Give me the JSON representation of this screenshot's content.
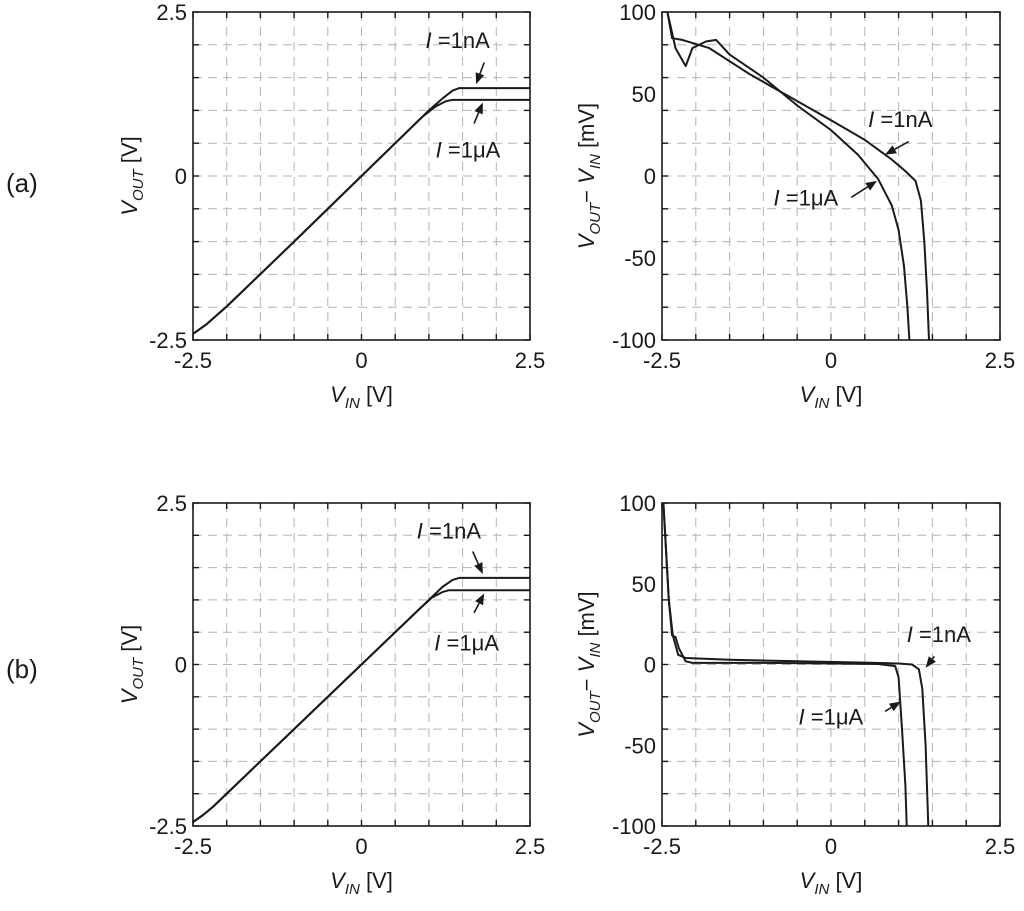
{
  "panel_labels": [
    "(a)",
    "(b)"
  ],
  "chart_data": [
    {
      "id": "a-left",
      "type": "line",
      "row_label": "(a)",
      "xlabel": {
        "main": "V",
        "sub": "IN",
        "unit": " [V]"
      },
      "ylabel": {
        "main": "V",
        "sub": "OUT",
        "unit": " [V]"
      },
      "xlim": [
        -2.5,
        2.5
      ],
      "ylim": [
        -2.5,
        2.5
      ],
      "xticks": [
        -2.5,
        0,
        2.5
      ],
      "xtick_labels": [
        "-2.5",
        "0",
        "2.5"
      ],
      "yticks": [
        -2.5,
        0,
        2.5
      ],
      "ytick_labels": [
        "-2.5",
        "0",
        "2.5"
      ],
      "grid": true,
      "series": [
        {
          "name": "I =1nA",
          "points": [
            [
              -2.62,
              -2.45
            ],
            [
              -2.55,
              -2.44
            ],
            [
              -2.45,
              -2.37
            ],
            [
              -2.3,
              -2.26
            ],
            [
              -2.0,
              -1.99
            ],
            [
              -1.0,
              -1.0
            ],
            [
              0,
              0
            ],
            [
              1.0,
              1.0
            ],
            [
              1.2,
              1.18
            ],
            [
              1.35,
              1.3
            ],
            [
              1.45,
              1.34
            ],
            [
              2.5,
              1.34
            ]
          ]
        },
        {
          "name": "I =1μA",
          "points": [
            [
              -2.62,
              -2.45
            ],
            [
              -2.55,
              -2.44
            ],
            [
              -2.45,
              -2.37
            ],
            [
              -2.3,
              -2.26
            ],
            [
              -2.0,
              -1.99
            ],
            [
              -1.0,
              -1.0
            ],
            [
              0,
              0
            ],
            [
              0.9,
              0.9
            ],
            [
              1.1,
              1.06
            ],
            [
              1.25,
              1.14
            ],
            [
              1.35,
              1.16
            ],
            [
              2.5,
              1.16
            ]
          ]
        }
      ],
      "annotations": [
        {
          "text_main": "I",
          "text_rest": " =1nA",
          "text_pos": [
            0.95,
            1.95
          ],
          "arrow_from": [
            1.82,
            1.73
          ],
          "arrow_to": [
            1.7,
            1.4
          ]
        },
        {
          "text_main": "I",
          "text_rest": " =1μA",
          "text_pos": [
            1.1,
            0.28
          ],
          "arrow_from": [
            1.67,
            0.8
          ],
          "arrow_to": [
            1.8,
            1.12
          ]
        }
      ]
    },
    {
      "id": "a-right",
      "type": "line",
      "row_label": "(a)",
      "xlabel": {
        "main": "V",
        "sub": "IN",
        "unit": " [V]"
      },
      "ylabel": {
        "main": "V",
        "sub": "OUT",
        "mid": "− V",
        "sub2": "IN",
        "unit": " [mV]"
      },
      "xlim": [
        -2.5,
        2.5
      ],
      "ylim": [
        -100,
        100
      ],
      "xticks": [
        -2.5,
        0,
        2.5
      ],
      "xtick_labels": [
        "-2.5",
        "0",
        "2.5"
      ],
      "yticks": [
        -100,
        -50,
        0,
        50,
        100
      ],
      "ytick_labels": [
        "-100",
        "-50",
        "0",
        "50",
        "100"
      ],
      "grid": true,
      "series": [
        {
          "name": "I =1nA",
          "points": [
            [
              -2.42,
              100
            ],
            [
              -2.35,
              84
            ],
            [
              -2.2,
              83
            ],
            [
              -1.8,
              78
            ],
            [
              -1.2,
              62
            ],
            [
              -0.6,
              48
            ],
            [
              0,
              34
            ],
            [
              0.5,
              22
            ],
            [
              0.9,
              10
            ],
            [
              1.1,
              3
            ],
            [
              1.25,
              -3
            ],
            [
              1.33,
              -15
            ],
            [
              1.38,
              -40
            ],
            [
              1.42,
              -70
            ],
            [
              1.45,
              -100
            ]
          ]
        },
        {
          "name": "I =1μA",
          "points": [
            [
              -2.42,
              100
            ],
            [
              -2.3,
              78
            ],
            [
              -2.15,
              67
            ],
            [
              -2.05,
              78
            ],
            [
              -1.85,
              82
            ],
            [
              -1.7,
              83
            ],
            [
              -1.5,
              74
            ],
            [
              -1.0,
              60
            ],
            [
              -0.5,
              43
            ],
            [
              0,
              28
            ],
            [
              0.4,
              13
            ],
            [
              0.7,
              -2
            ],
            [
              0.9,
              -18
            ],
            [
              1.0,
              -33
            ],
            [
              1.08,
              -55
            ],
            [
              1.13,
              -80
            ],
            [
              1.16,
              -100
            ]
          ]
        }
      ],
      "annotations": [
        {
          "text_main": "I",
          "text_rest": " =1nA",
          "text_pos": [
            0.55,
            30
          ],
          "arrow_from": [
            1.15,
            21
          ],
          "arrow_to": [
            0.8,
            13
          ]
        },
        {
          "text_main": "I",
          "text_rest": " =1μA",
          "text_pos": [
            -0.85,
            -18
          ],
          "arrow_from": [
            0.3,
            -13
          ],
          "arrow_to": [
            0.68,
            -3
          ]
        }
      ]
    },
    {
      "id": "b-left",
      "type": "line",
      "row_label": "(b)",
      "xlabel": {
        "main": "V",
        "sub": "IN",
        "unit": " [V]"
      },
      "ylabel": {
        "main": "V",
        "sub": "OUT",
        "unit": " [V]"
      },
      "xlim": [
        -2.5,
        2.5
      ],
      "ylim": [
        -2.5,
        2.5
      ],
      "xticks": [
        -2.5,
        0,
        2.5
      ],
      "xtick_labels": [
        "-2.5",
        "0",
        "2.5"
      ],
      "yticks": [
        -2.5,
        0,
        2.5
      ],
      "ytick_labels": [
        "-2.5",
        "0",
        "2.5"
      ],
      "grid": true,
      "series": [
        {
          "name": "I =1nA",
          "points": [
            [
              -2.62,
              -2.45
            ],
            [
              -2.5,
              -2.44
            ],
            [
              -2.35,
              -2.33
            ],
            [
              -2.2,
              -2.2
            ],
            [
              -1.0,
              -1.0
            ],
            [
              0,
              0
            ],
            [
              1.0,
              1.0
            ],
            [
              1.2,
              1.2
            ],
            [
              1.35,
              1.31
            ],
            [
              1.45,
              1.34
            ],
            [
              2.5,
              1.34
            ]
          ]
        },
        {
          "name": "I =1μA",
          "points": [
            [
              -2.62,
              -2.45
            ],
            [
              -2.5,
              -2.44
            ],
            [
              -2.35,
              -2.33
            ],
            [
              -2.2,
              -2.2
            ],
            [
              -1.0,
              -1.0
            ],
            [
              0,
              0
            ],
            [
              0.85,
              0.85
            ],
            [
              1.05,
              1.04
            ],
            [
              1.2,
              1.12
            ],
            [
              1.3,
              1.15
            ],
            [
              2.5,
              1.15
            ]
          ]
        }
      ],
      "annotations": [
        {
          "text_main": "I",
          "text_rest": " =1nA",
          "text_pos": [
            0.82,
            1.95
          ],
          "arrow_from": [
            1.65,
            1.75
          ],
          "arrow_to": [
            1.8,
            1.4
          ]
        },
        {
          "text_main": "I",
          "text_rest": " =1μA",
          "text_pos": [
            1.08,
            0.22
          ],
          "arrow_from": [
            1.67,
            0.8
          ],
          "arrow_to": [
            1.82,
            1.1
          ]
        }
      ]
    },
    {
      "id": "b-right",
      "type": "line",
      "row_label": "(b)",
      "xlabel": {
        "main": "V",
        "sub": "IN",
        "unit": " [V]"
      },
      "ylabel": {
        "main": "V",
        "sub": "OUT",
        "mid": "− V",
        "sub2": "IN",
        "unit": " [mV]"
      },
      "xlim": [
        -2.5,
        2.5
      ],
      "ylim": [
        -100,
        100
      ],
      "xticks": [
        -2.5,
        0,
        2.5
      ],
      "xtick_labels": [
        "-2.5",
        "0",
        "2.5"
      ],
      "yticks": [
        -100,
        -50,
        0,
        50,
        100
      ],
      "ytick_labels": [
        "-100",
        "-50",
        "0",
        "50",
        "100"
      ],
      "grid": true,
      "series": [
        {
          "name": "I =1nA",
          "points": [
            [
              -2.48,
              100
            ],
            [
              -2.44,
              70
            ],
            [
              -2.4,
              40
            ],
            [
              -2.34,
              18
            ],
            [
              -2.26,
              6
            ],
            [
              -2.15,
              4
            ],
            [
              -1.5,
              3
            ],
            [
              -0.5,
              2
            ],
            [
              0.5,
              1.2
            ],
            [
              1.0,
              0.6
            ],
            [
              1.2,
              0
            ],
            [
              1.3,
              -3
            ],
            [
              1.35,
              -15
            ],
            [
              1.4,
              -50
            ],
            [
              1.44,
              -100
            ]
          ]
        },
        {
          "name": "I =1μA",
          "points": [
            [
              -2.48,
              100
            ],
            [
              -2.44,
              70
            ],
            [
              -2.4,
              40
            ],
            [
              -2.35,
              18
            ],
            [
              -2.3,
              17
            ],
            [
              -2.25,
              10
            ],
            [
              -2.15,
              2
            ],
            [
              -2.05,
              1
            ],
            [
              -1.0,
              1
            ],
            [
              0,
              0.6
            ],
            [
              0.7,
              0.3
            ],
            [
              0.95,
              -1
            ],
            [
              1.0,
              -8
            ],
            [
              1.05,
              -40
            ],
            [
              1.1,
              -75
            ],
            [
              1.12,
              -100
            ]
          ]
        }
      ],
      "annotations": [
        {
          "text_main": "I",
          "text_rest": " =1nA",
          "text_pos": [
            1.12,
            14
          ],
          "arrow_from": [
            1.53,
            5
          ],
          "arrow_to": [
            1.4,
            -2
          ]
        },
        {
          "text_main": "I",
          "text_rest": " =1μA",
          "text_pos": [
            -0.48,
            -37
          ],
          "arrow_from": [
            0.8,
            -29
          ],
          "arrow_to": [
            1.03,
            -23
          ]
        }
      ]
    }
  ]
}
